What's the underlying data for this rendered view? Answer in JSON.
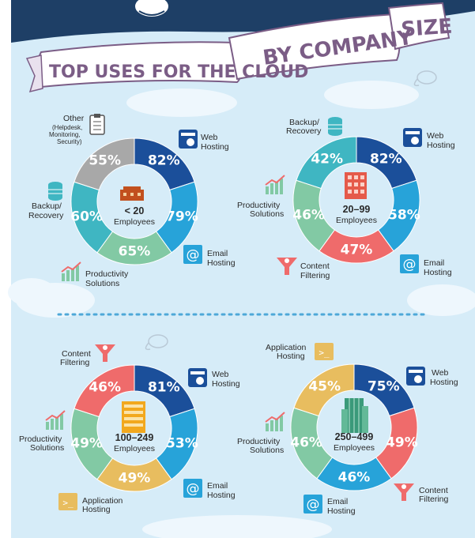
{
  "banner": {
    "title_part1": "TOP USES FOR THE CLOUD",
    "title_part2": "BY COMPANY",
    "title_part3": "SIZE"
  },
  "colors": {
    "web_hosting": "#1b4f9a",
    "email_hosting": "#27a3d9",
    "productivity": "#82c9a4",
    "backup": "#3fb6c2",
    "other": "#a8a8a8",
    "content_filtering": "#ef6b6b",
    "application_hosting": "#e8bd5f",
    "background": "#d6ecf8"
  },
  "chart_data": [
    {
      "type": "pie",
      "center_number": "< 20",
      "center_label": "Employees",
      "segments": [
        {
          "label": "Web Hosting",
          "value": 82,
          "text": "82%"
        },
        {
          "label": "Email Hosting",
          "value": 79,
          "text": "79%"
        },
        {
          "label": "Productivity Solutions",
          "value": 65,
          "text": "65%"
        },
        {
          "label": "Backup/ Recovery",
          "value": 60,
          "text": "60%"
        },
        {
          "label": "Other",
          "sublabel": "(Helpdesk, Monitoring, Security)",
          "value": 55,
          "text": "55%"
        }
      ]
    },
    {
      "type": "pie",
      "center_number": "20–99",
      "center_label": "Employees",
      "segments": [
        {
          "label": "Web Hosting",
          "value": 82,
          "text": "82%"
        },
        {
          "label": "Email Hosting",
          "value": 58,
          "text": "58%"
        },
        {
          "label": "Content Filtering",
          "value": 47,
          "text": "47%"
        },
        {
          "label": "Productivity Solutions",
          "value": 46,
          "text": "46%"
        },
        {
          "label": "Backup/ Recovery",
          "value": 42,
          "text": "42%"
        }
      ]
    },
    {
      "type": "pie",
      "center_number": "100–249",
      "center_label": "Employees",
      "segments": [
        {
          "label": "Web Hosting",
          "value": 81,
          "text": "81%"
        },
        {
          "label": "Email Hosting",
          "value": 53,
          "text": "53%"
        },
        {
          "label": "Application Hosting",
          "value": 49,
          "text": "49%"
        },
        {
          "label": "Productivity Solutions",
          "value": 49,
          "text": "49%"
        },
        {
          "label": "Content Filtering",
          "value": 46,
          "text": "46%"
        }
      ]
    },
    {
      "type": "pie",
      "center_number": "250–499",
      "center_label": "Employees",
      "segments": [
        {
          "label": "Web Hosting",
          "value": 75,
          "text": "75%"
        },
        {
          "label": "Content Filtering",
          "value": 49,
          "text": "49%"
        },
        {
          "label": "Email Hosting",
          "value": 46,
          "text": "46%"
        },
        {
          "label": "Productivity Solutions",
          "value": 46,
          "text": "46%"
        },
        {
          "label": "Application Hosting",
          "value": 45,
          "text": "45%"
        }
      ]
    }
  ],
  "labels": {
    "web": [
      "Web",
      "Hosting"
    ],
    "email": [
      "Email",
      "Hosting"
    ],
    "productivity": [
      "Productivity",
      "Solutions"
    ],
    "backup": [
      "Backup/",
      "Recovery"
    ],
    "other": "Other",
    "other_sub": [
      "(Helpdesk,",
      "Monitoring,",
      "Security)"
    ],
    "content": [
      "Content",
      "Filtering"
    ],
    "application": [
      "Application",
      "Hosting"
    ]
  }
}
